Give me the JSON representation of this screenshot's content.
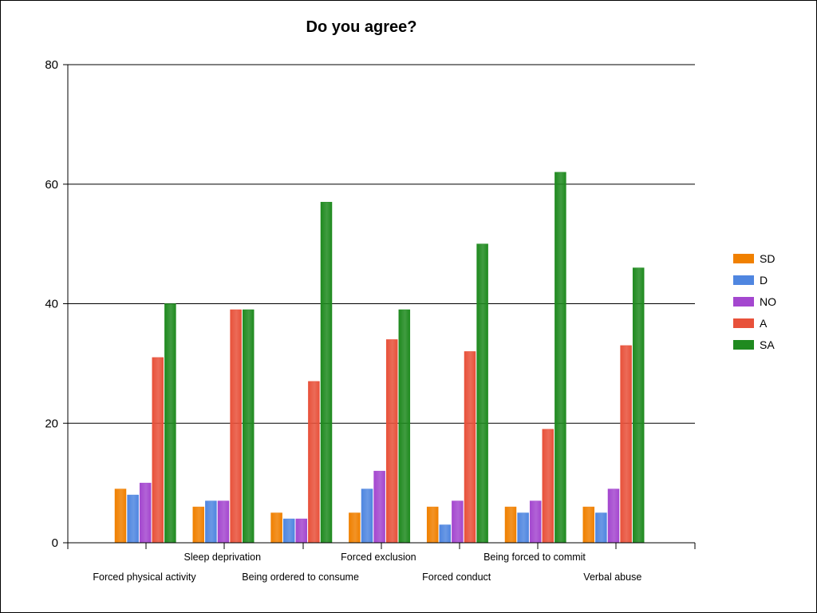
{
  "chart_data": {
    "type": "bar",
    "title": "Do you agree?",
    "xlabel": "",
    "ylabel": "",
    "ylim": [
      0,
      80
    ],
    "yticks": [
      0,
      20,
      40,
      60,
      80
    ],
    "grid": true,
    "legend_position": "right",
    "categories": [
      "Forced physical activity",
      "Sleep deprivation",
      "Being ordered to consume",
      "Forced exclusion",
      "Forced conduct",
      "Being forced to commit",
      "Verbal abuse"
    ],
    "series": [
      {
        "name": "SD",
        "color": "#f08000",
        "values": [
          9,
          6,
          5,
          5,
          6,
          6,
          6
        ]
      },
      {
        "name": "D",
        "color": "#4f86e0",
        "values": [
          8,
          7,
          4,
          9,
          3,
          5,
          5
        ]
      },
      {
        "name": "NO",
        "color": "#a447cf",
        "values": [
          10,
          7,
          4,
          12,
          7,
          7,
          9
        ]
      },
      {
        "name": "A",
        "color": "#e8513a",
        "values": [
          31,
          39,
          27,
          34,
          32,
          19,
          33
        ]
      },
      {
        "name": "SA",
        "color": "#1f8a1f",
        "values": [
          40,
          39,
          57,
          39,
          50,
          62,
          46
        ]
      }
    ]
  }
}
